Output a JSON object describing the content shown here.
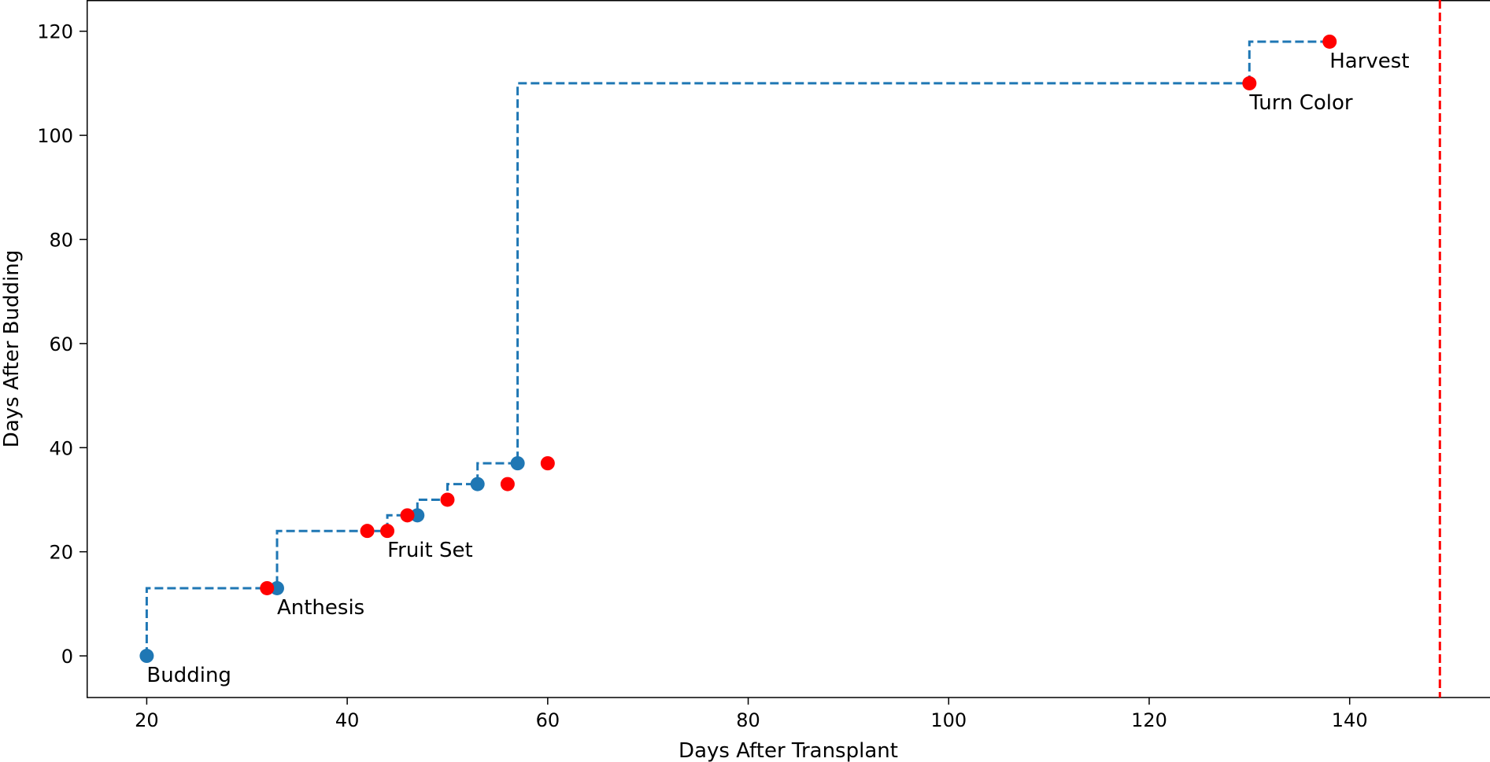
{
  "chart_data": {
    "type": "scatter",
    "xlabel": "Days After Transplant",
    "ylabel": "Days After Budding",
    "xlim": [
      14,
      154
    ],
    "ylim": [
      -8,
      126
    ],
    "x_ticks": [
      20,
      40,
      60,
      80,
      100,
      120,
      140
    ],
    "y_ticks": [
      0,
      20,
      40,
      60,
      80,
      100,
      120
    ],
    "grid": false,
    "step_line": {
      "style": "dashed",
      "color": "#1f77b4",
      "points": [
        [
          20,
          0
        ],
        [
          20,
          13
        ],
        [
          33,
          13
        ],
        [
          33,
          24
        ],
        [
          44,
          24
        ],
        [
          44,
          27
        ],
        [
          47,
          27
        ],
        [
          47,
          30
        ],
        [
          50,
          30
        ],
        [
          50,
          33
        ],
        [
          53,
          33
        ],
        [
          53,
          37
        ],
        [
          57,
          37
        ],
        [
          57,
          110
        ],
        [
          130,
          110
        ],
        [
          130,
          118
        ],
        [
          138,
          118
        ]
      ]
    },
    "series": [
      {
        "color": "#1f77b4",
        "points": [
          [
            20,
            0
          ],
          [
            33,
            13
          ],
          [
            47,
            27
          ],
          [
            53,
            33
          ],
          [
            57,
            37
          ]
        ]
      },
      {
        "color": "#ff0000",
        "points": [
          [
            32,
            13
          ],
          [
            42,
            24
          ],
          [
            44,
            24
          ],
          [
            46,
            27
          ],
          [
            50,
            30
          ],
          [
            56,
            33
          ],
          [
            60,
            37
          ],
          [
            130,
            110
          ],
          [
            138,
            118
          ]
        ]
      }
    ],
    "annotations": [
      {
        "text": "Budding",
        "x": 20,
        "y": 0
      },
      {
        "text": "Anthesis",
        "x": 33,
        "y": 13
      },
      {
        "text": "Fruit Set",
        "x": 44,
        "y": 24
      },
      {
        "text": "Turn Color",
        "x": 130,
        "y": 110
      },
      {
        "text": "Harvest",
        "x": 138,
        "y": 118
      }
    ],
    "vline": {
      "x": 149,
      "color": "#ff0000",
      "style": "dashed"
    }
  }
}
